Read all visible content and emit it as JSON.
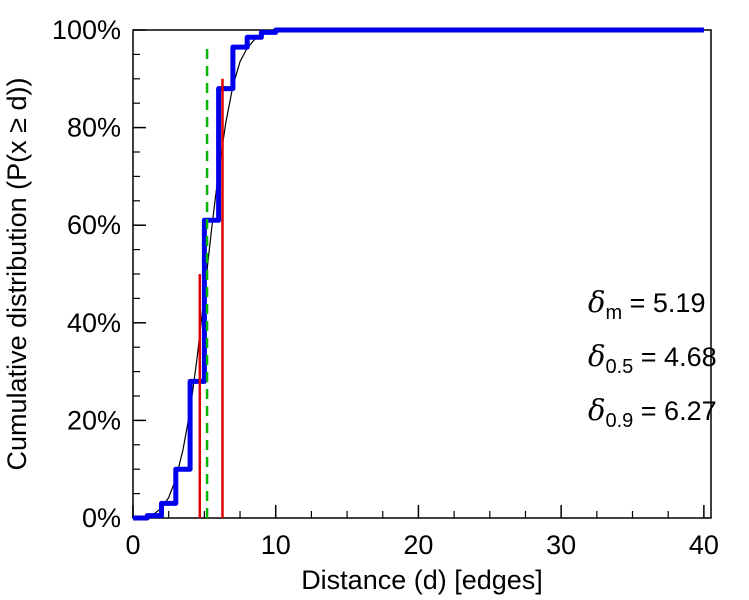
{
  "figure": {
    "background_color": "#ffffff",
    "frame_color": "#000000"
  },
  "chart_data": {
    "type": "line",
    "title": "",
    "xlabel": "Distance (d) [edges]",
    "ylabel": "Cumulative distribution (P(x ≥ d))",
    "xlim": [
      0,
      40.5
    ],
    "ylim": [
      0,
      100
    ],
    "x_ticks": [
      0,
      10,
      20,
      30,
      40
    ],
    "x_minor_step": 2.5,
    "y_ticks": [
      0,
      20,
      40,
      60,
      80,
      100
    ],
    "y_minor_step": 5,
    "y_tick_suffix": "%",
    "grid": false,
    "legend": "none",
    "series": [
      {
        "name": "empirical-cdf-step",
        "type": "step",
        "color": "#0000ee",
        "width": 5,
        "x": [
          0,
          1,
          2,
          3,
          4,
          5,
          6,
          7,
          8,
          9,
          10,
          40
        ],
        "y": [
          0,
          0.5,
          3,
          10,
          28,
          61,
          88,
          96.5,
          98.5,
          99.5,
          100,
          100
        ]
      },
      {
        "name": "smoothed-cdf-fit",
        "type": "line",
        "color": "#000000",
        "width": 1.2,
        "x": [
          0.7,
          1,
          1.5,
          2,
          2.5,
          3,
          3.5,
          4,
          4.5,
          5,
          5.5,
          6,
          6.5,
          7,
          7.5,
          8,
          8.5,
          9,
          9.5,
          10,
          11,
          40
        ],
        "y": [
          0,
          0.2,
          0.9,
          2,
          4.2,
          8,
          14,
          22,
          33,
          46,
          59,
          71,
          81,
          88.5,
          93.5,
          96.3,
          98,
          99,
          99.5,
          99.8,
          100,
          100
        ]
      }
    ],
    "vlines": [
      {
        "name": "median-distance-line",
        "x": 4.68,
        "y0": 0,
        "y1": 50,
        "color": "#dd0000",
        "width": 2.5,
        "dash": ""
      },
      {
        "name": "mean-distance-line",
        "x": 5.19,
        "y0": 0,
        "y1": 97,
        "color": "#00b400",
        "width": 2.5,
        "dash": "10 7"
      },
      {
        "name": "effective-diameter-line",
        "x": 6.27,
        "y0": 0,
        "y1": 90,
        "color": "#dd0000",
        "width": 2.5,
        "dash": ""
      }
    ],
    "annotations": [
      {
        "symbol": "δ",
        "sub": "m",
        "rest": " = 5.19",
        "value": 5.19
      },
      {
        "symbol": "δ",
        "sub": "0.5",
        "rest": " = 4.68",
        "value": 4.68
      },
      {
        "symbol": "δ",
        "sub": "0.9",
        "rest": " = 6.27",
        "value": 6.27
      }
    ]
  }
}
